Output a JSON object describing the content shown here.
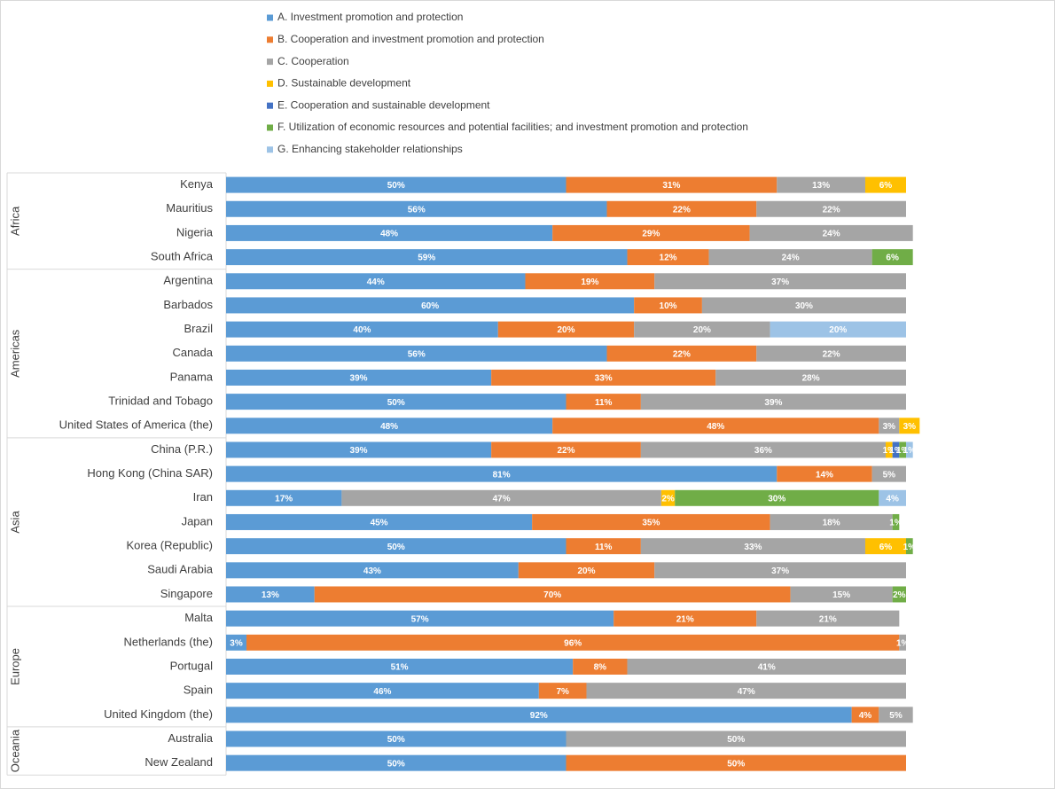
{
  "chart_data": {
    "type": "stacked-bar-horizontal",
    "groups": [
      {
        "name": "Africa",
        "categories": [
          "Kenya",
          "Mauritius",
          "Nigeria",
          "South Africa"
        ]
      },
      {
        "name": "Americas",
        "categories": [
          "Argentina",
          "Barbados",
          "Brazil",
          "Canada",
          "Panama",
          "Trinidad and Tobago",
          "United States of America (the)"
        ]
      },
      {
        "name": "Asia",
        "categories": [
          "China (P.R.)",
          "Hong Kong (China SAR)",
          "Iran",
          "Japan",
          "Korea (Republic)",
          "Saudi Arabia",
          "Singapore"
        ]
      },
      {
        "name": "Europe",
        "categories": [
          "Malta",
          "Netherlands (the)",
          "Portugal",
          "Spain",
          "United Kingdom (the)"
        ]
      },
      {
        "name": "Oceania",
        "categories": [
          "Australia",
          "New Zealand"
        ]
      }
    ],
    "xlim": [
      0,
      100
    ],
    "series": [
      {
        "name": "A. Investment promotion and protection",
        "color": "#5b9bd5",
        "values": [
          50,
          56,
          48,
          59,
          44,
          60,
          40,
          56,
          39,
          50,
          48,
          39,
          81,
          17,
          45,
          50,
          43,
          13,
          57,
          3,
          51,
          46,
          92,
          50,
          50
        ],
        "value_labels": [
          "50%",
          "56%",
          "48%",
          "59%",
          "44%",
          "60%",
          "40%",
          "56%",
          "39%",
          "50%",
          "48%",
          "39%",
          "81%",
          "17%",
          "45%",
          "50%",
          "43%",
          "13%",
          "57%",
          "3%",
          "51%",
          "46%",
          "92%",
          "50%",
          "50%"
        ]
      },
      {
        "name": "B. Cooperation and investment promotion and protection",
        "color": "#ed7d31",
        "values": [
          31,
          22,
          29,
          12,
          19,
          10,
          20,
          22,
          33,
          11,
          48,
          22,
          14,
          null,
          35,
          11,
          20,
          70,
          21,
          96,
          8,
          7,
          4,
          null,
          50
        ],
        "value_labels": [
          "31%",
          "22%",
          "29%",
          "12%",
          "19%",
          "10%",
          "20%",
          "22%",
          "33%",
          "11%",
          "48%",
          "22%",
          "14%",
          null,
          "35%",
          "11%",
          "20%",
          "70%",
          "21%",
          "96%",
          "8%",
          "7%",
          "4%",
          null,
          "50%"
        ]
      },
      {
        "name": "C. Cooperation",
        "color": "#a5a5a5",
        "values": [
          13,
          22,
          24,
          24,
          37,
          30,
          20,
          22,
          28,
          39,
          3,
          36,
          5,
          47,
          18,
          33,
          37,
          15,
          21,
          1,
          41,
          47,
          5,
          50,
          null
        ],
        "value_labels": [
          "13%",
          "22%",
          "24%",
          "24%",
          "37%",
          "30%",
          "20%",
          "22%",
          "28%",
          "39%",
          "3%",
          "36%",
          "5%",
          "47%",
          "18%",
          "33%",
          "37%",
          "15%",
          "21%",
          "1%",
          "41%",
          "47%",
          "5%",
          "50%",
          null
        ]
      },
      {
        "name": "D. Sustainable development",
        "color": "#ffc000",
        "values": [
          6,
          null,
          null,
          null,
          null,
          null,
          null,
          null,
          null,
          null,
          3,
          1,
          null,
          2,
          null,
          6,
          null,
          null,
          null,
          null,
          null,
          null,
          null,
          null,
          null
        ],
        "value_labels": [
          "6%",
          null,
          null,
          null,
          null,
          null,
          null,
          null,
          null,
          null,
          "3%",
          "1%",
          null,
          "2%",
          null,
          "6%",
          null,
          null,
          null,
          null,
          null,
          null,
          null,
          null,
          null
        ]
      },
      {
        "name": "E. Cooperation and sustainable development",
        "color": "#4472c4",
        "values": [
          null,
          null,
          null,
          null,
          null,
          null,
          null,
          null,
          null,
          null,
          null,
          1,
          null,
          null,
          null,
          null,
          null,
          null,
          null,
          null,
          null,
          null,
          null,
          null,
          null
        ],
        "value_labels": [
          null,
          null,
          null,
          null,
          null,
          null,
          null,
          null,
          null,
          null,
          null,
          "1%",
          null,
          null,
          null,
          null,
          null,
          null,
          null,
          null,
          null,
          null,
          null,
          null,
          null
        ]
      },
      {
        "name": "F. Utilization of economic resources and potential facilities; and investment promotion and protection",
        "color": "#70ad47",
        "values": [
          null,
          null,
          null,
          6,
          null,
          null,
          null,
          null,
          null,
          null,
          null,
          1,
          null,
          30,
          1,
          1,
          null,
          2,
          null,
          null,
          null,
          null,
          null,
          null,
          null
        ],
        "value_labels": [
          null,
          null,
          null,
          "6%",
          null,
          null,
          null,
          null,
          null,
          null,
          null,
          "1%",
          null,
          "30%",
          "1%",
          "1%",
          null,
          "2%",
          null,
          null,
          null,
          null,
          null,
          null,
          null
        ]
      },
      {
        "name": "G. Enhancing stakeholder relationships",
        "color": "#9dc3e6",
        "values": [
          null,
          null,
          null,
          null,
          null,
          null,
          20,
          null,
          null,
          null,
          null,
          1,
          null,
          4,
          null,
          null,
          null,
          null,
          null,
          null,
          null,
          null,
          null,
          null,
          null
        ],
        "value_labels": [
          null,
          null,
          null,
          null,
          null,
          null,
          "20%",
          null,
          null,
          null,
          null,
          "1%",
          null,
          "4%",
          null,
          null,
          null,
          null,
          null,
          null,
          null,
          null,
          null,
          null,
          null
        ]
      }
    ]
  }
}
